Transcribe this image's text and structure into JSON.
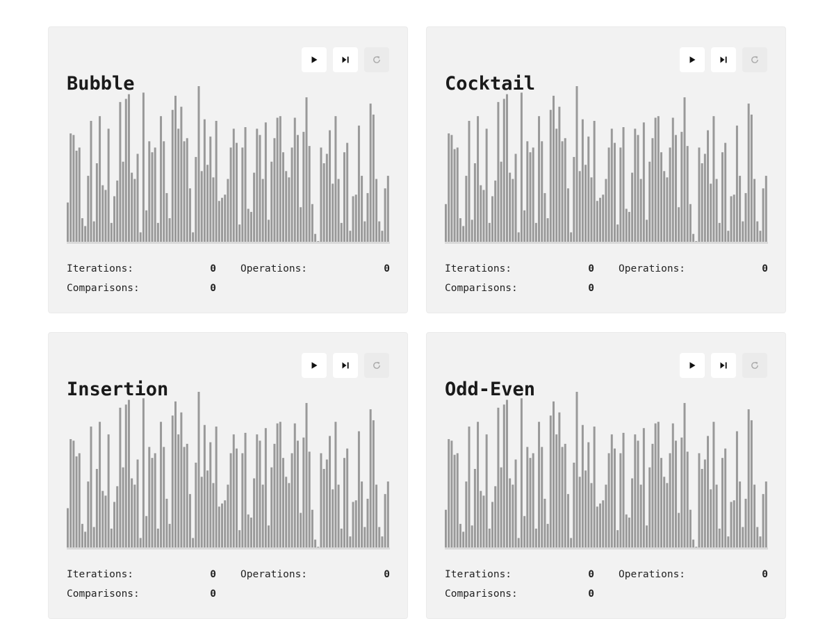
{
  "icons": {
    "play": "play-icon",
    "step": "step-forward-icon",
    "reset": "reset-icon"
  },
  "colors": {
    "bar": "#999999",
    "track": "#d9d9d9",
    "card": "#f2f2f2"
  },
  "labels": {
    "iterations": "Iterations:",
    "operations": "Operations:",
    "comparisons": "Comparisons:"
  },
  "chart_data": [
    {
      "type": "bar",
      "values": [
        25,
        69,
        68,
        58,
        60,
        15,
        10,
        42,
        77,
        13,
        50,
        80,
        36,
        33,
        72,
        12,
        29,
        39,
        89,
        51,
        91,
        94,
        44,
        40,
        56,
        6,
        95,
        20,
        64,
        57,
        60,
        12,
        80,
        64,
        31,
        15,
        84,
        93,
        72,
        86,
        64,
        66,
        34,
        6,
        54,
        100,
        45,
        78,
        49,
        67,
        41,
        77,
        26,
        28,
        30,
        40,
        60,
        72,
        63,
        11,
        60,
        73,
        21,
        19,
        44,
        72,
        68,
        40,
        76,
        14,
        51,
        66,
        79,
        80,
        57,
        45,
        41,
        60,
        79,
        68,
        22,
        70,
        92,
        61,
        24,
        5,
        0,
        60,
        50,
        56,
        71,
        37,
        80,
        40,
        12,
        57,
        63,
        7,
        29,
        30,
        74,
        42,
        13,
        31,
        88,
        81,
        40,
        13,
        7,
        34,
        42
      ],
      "note": ""
    },
    {
      "type": "bar",
      "values": [
        24,
        69,
        68,
        59,
        60,
        15,
        10,
        42,
        77,
        14,
        50,
        80,
        36,
        33,
        72,
        12,
        29,
        39,
        89,
        51,
        91,
        94,
        44,
        40,
        56,
        6,
        95,
        20,
        64,
        57,
        60,
        12,
        80,
        64,
        31,
        15,
        84,
        93,
        72,
        86,
        64,
        66,
        34,
        6,
        54,
        100,
        45,
        78,
        49,
        67,
        41,
        77,
        26,
        28,
        30,
        40,
        60,
        72,
        63,
        11,
        60,
        73,
        21,
        19,
        44,
        72,
        68,
        40,
        76,
        14,
        51,
        66,
        79,
        80,
        57,
        45,
        41,
        60,
        79,
        68,
        22,
        70,
        92,
        61,
        24,
        5,
        0,
        60,
        50,
        56,
        71,
        37,
        80,
        40,
        12,
        57,
        63,
        7,
        29,
        30,
        74,
        42,
        13,
        31,
        88,
        81,
        40,
        13,
        7,
        34,
        42
      ]
    },
    {
      "type": "bar",
      "values": [
        25,
        69,
        68,
        58,
        60,
        15,
        10,
        42,
        77,
        13,
        50,
        80,
        36,
        33,
        72,
        12,
        29,
        39,
        89,
        51,
        91,
        94,
        44,
        40,
        56,
        6,
        95,
        20,
        64,
        57,
        60,
        12,
        80,
        64,
        31,
        15,
        84,
        93,
        72,
        86,
        64,
        66,
        34,
        6,
        54,
        100,
        45,
        78,
        49,
        67,
        41,
        77,
        26,
        28,
        30,
        40,
        60,
        72,
        63,
        11,
        60,
        73,
        21,
        19,
        44,
        72,
        68,
        40,
        76,
        14,
        51,
        66,
        79,
        80,
        57,
        45,
        41,
        60,
        79,
        68,
        22,
        70,
        92,
        61,
        24,
        5,
        0,
        60,
        50,
        56,
        71,
        37,
        80,
        40,
        12,
        57,
        63,
        7,
        29,
        30,
        74,
        42,
        13,
        31,
        88,
        81,
        40,
        13,
        7,
        34,
        42
      ]
    },
    {
      "type": "bar",
      "values": [
        24,
        69,
        68,
        59,
        60,
        15,
        10,
        42,
        77,
        14,
        50,
        80,
        36,
        33,
        72,
        12,
        29,
        39,
        89,
        51,
        91,
        94,
        44,
        40,
        56,
        6,
        95,
        20,
        64,
        57,
        60,
        12,
        80,
        64,
        31,
        15,
        84,
        93,
        72,
        86,
        64,
        66,
        34,
        6,
        54,
        100,
        45,
        78,
        49,
        67,
        41,
        77,
        26,
        28,
        30,
        40,
        60,
        72,
        63,
        11,
        60,
        73,
        21,
        19,
        44,
        72,
        68,
        40,
        76,
        14,
        51,
        66,
        79,
        80,
        57,
        45,
        41,
        60,
        79,
        68,
        22,
        70,
        92,
        61,
        24,
        5,
        0,
        60,
        50,
        56,
        71,
        37,
        80,
        40,
        12,
        57,
        63,
        7,
        29,
        30,
        74,
        42,
        13,
        31,
        88,
        81,
        40,
        13,
        7,
        34,
        42
      ]
    }
  ],
  "cards": [
    {
      "title": "Bubble",
      "iterations": "0",
      "operations": "0",
      "comparisons": "0"
    },
    {
      "title": "Cocktail",
      "iterations": "0",
      "operations": "0",
      "comparisons": "0"
    },
    {
      "title": "Insertion",
      "iterations": "0",
      "operations": "0",
      "comparisons": "0"
    },
    {
      "title": "Odd-Even",
      "iterations": "0",
      "operations": "0",
      "comparisons": "0"
    }
  ]
}
